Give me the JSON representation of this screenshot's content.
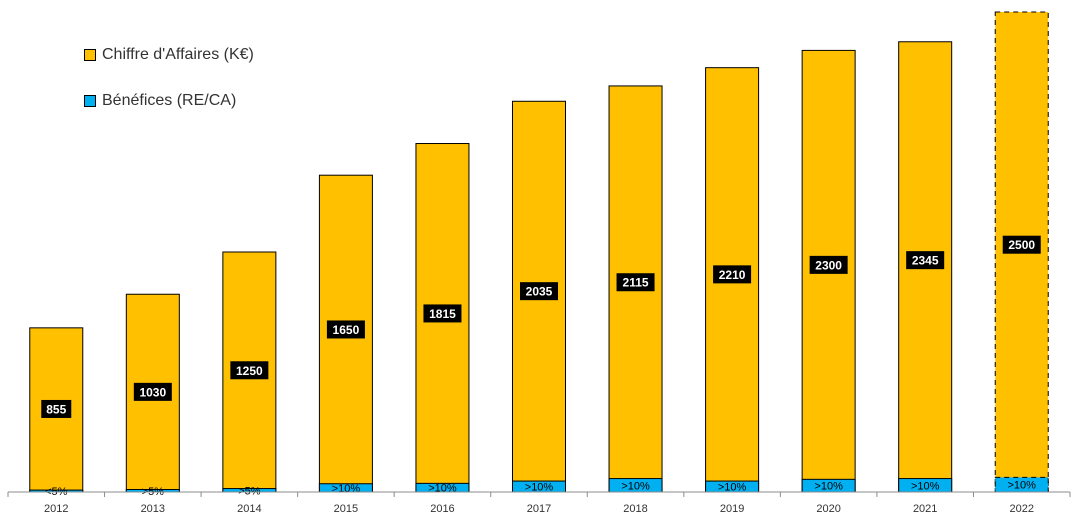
{
  "chart_data": {
    "type": "bar",
    "stacked": true,
    "categories": [
      "2012",
      "2013",
      "2014",
      "2015",
      "2016",
      "2017",
      "2018",
      "2019",
      "2020",
      "2021",
      "2022"
    ],
    "series": [
      {
        "name": "Bénéfices (RE/CA)",
        "color": "#00B0F0",
        "values": [
          10,
          13,
          18,
          43,
          45,
          57,
          70,
          57,
          66,
          70,
          76
        ],
        "labels": [
          "<5%",
          ">5%",
          ">5%",
          ">10%",
          ">10%",
          ">10%",
          ">10%",
          ">10%",
          ">10%",
          ">10%",
          ">10%"
        ]
      },
      {
        "name": "Chiffre d'Affaires (K€)",
        "color": "#FFC000",
        "values": [
          855,
          1030,
          1250,
          1650,
          1815,
          2035,
          2115,
          2210,
          2300,
          2345,
          2500
        ],
        "labels": [
          "855",
          "1030",
          "1250",
          "1650",
          "1815",
          "2035",
          "2115",
          "2210",
          "2300",
          "2345",
          "2500"
        ]
      }
    ],
    "projected_category": "2022",
    "legend": [
      "Chiffre d'Affaires (K€)",
      "Bénéfices (RE/CA)"
    ],
    "legend_position": "top-left",
    "ylim": [
      0,
      2500
    ],
    "grid": false
  }
}
